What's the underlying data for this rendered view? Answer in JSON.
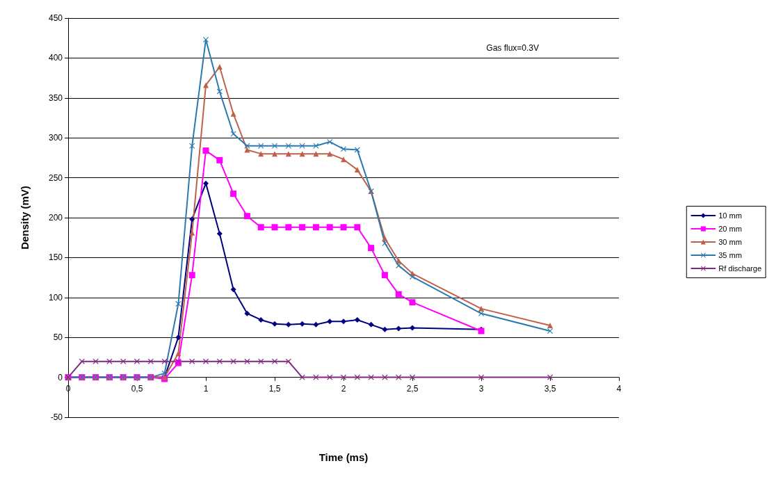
{
  "chart_data": {
    "type": "line",
    "xlabel": "Time (ms)",
    "ylabel": "Density (mV)",
    "annotations": [
      "Gas flux=0.3V"
    ],
    "xlim": [
      0,
      4
    ],
    "xticks": [
      0,
      {
        "value": 0.5,
        "label": "0,5"
      },
      1,
      {
        "value": 1.5,
        "label": "1,5"
      },
      2,
      {
        "value": 2.5,
        "label": "2,5"
      },
      3,
      {
        "value": 3.5,
        "label": "3,5"
      },
      4
    ],
    "ylim": [
      -50,
      450
    ],
    "yticks": [
      -50,
      0,
      50,
      100,
      150,
      200,
      250,
      300,
      350,
      400,
      450
    ],
    "grid": "y",
    "legend": "right",
    "series": [
      {
        "name": "10 mm",
        "color": "#000080",
        "marker": "diamond",
        "x": [
          0,
          0.1,
          0.2,
          0.3,
          0.4,
          0.5,
          0.6,
          0.7,
          0.8,
          0.9,
          1.0,
          1.1,
          1.2,
          1.3,
          1.4,
          1.5,
          1.6,
          1.7,
          1.8,
          1.9,
          2.0,
          2.1,
          2.2,
          2.3,
          2.4,
          2.5,
          3.0
        ],
        "values": [
          0,
          0,
          0,
          0,
          0,
          0,
          0,
          0,
          50,
          198,
          243,
          180,
          110,
          80,
          72,
          67,
          66,
          67,
          66,
          70,
          70,
          72,
          66,
          60,
          61,
          62,
          60
        ]
      },
      {
        "name": "20 mm",
        "color": "#ff00ff",
        "marker": "square",
        "x": [
          0,
          0.1,
          0.2,
          0.3,
          0.4,
          0.5,
          0.6,
          0.7,
          0.8,
          0.9,
          1.0,
          1.1,
          1.2,
          1.3,
          1.4,
          1.5,
          1.6,
          1.7,
          1.8,
          1.9,
          2.0,
          2.1,
          2.2,
          2.3,
          2.4,
          2.5,
          3.0
        ],
        "values": [
          0,
          0,
          0,
          0,
          0,
          0,
          0,
          -2,
          18,
          128,
          284,
          272,
          230,
          202,
          188,
          188,
          188,
          188,
          188,
          188,
          188,
          188,
          162,
          128,
          104,
          94,
          58
        ]
      },
      {
        "name": "30 mm",
        "color": "#c0604a",
        "marker": "triangle",
        "x": [
          0,
          0.1,
          0.2,
          0.3,
          0.4,
          0.5,
          0.6,
          0.7,
          0.8,
          0.9,
          1.0,
          1.1,
          1.2,
          1.3,
          1.4,
          1.5,
          1.6,
          1.7,
          1.8,
          1.9,
          2.0,
          2.1,
          2.2,
          2.3,
          2.4,
          2.5,
          3.0,
          3.5
        ],
        "values": [
          0,
          0,
          0,
          0,
          0,
          0,
          0,
          0,
          30,
          181,
          366,
          389,
          330,
          285,
          280,
          280,
          280,
          280,
          280,
          280,
          273,
          260,
          233,
          174,
          146,
          130,
          86,
          65
        ]
      },
      {
        "name": "35 mm",
        "color": "#2a7ab0",
        "marker": "cross",
        "x": [
          0,
          0.1,
          0.2,
          0.3,
          0.4,
          0.5,
          0.6,
          0.7,
          0.8,
          0.9,
          1.0,
          1.1,
          1.2,
          1.3,
          1.4,
          1.5,
          1.6,
          1.7,
          1.8,
          1.9,
          2.0,
          2.1,
          2.2,
          2.3,
          2.4,
          2.5,
          3.0,
          3.5
        ],
        "values": [
          0,
          0,
          0,
          0,
          0,
          0,
          0,
          5,
          92,
          290,
          423,
          358,
          305,
          290,
          290,
          290,
          290,
          290,
          290,
          295,
          286,
          285,
          233,
          168,
          140,
          126,
          80,
          58
        ]
      },
      {
        "name": "Rf discharge",
        "color": "#7f2a7f",
        "marker": "cross",
        "x": [
          0,
          0.1,
          0.2,
          0.3,
          0.4,
          0.5,
          0.6,
          0.7,
          0.8,
          0.9,
          1.0,
          1.1,
          1.2,
          1.3,
          1.4,
          1.5,
          1.6,
          1.7,
          1.8,
          1.9,
          2.0,
          2.1,
          2.2,
          2.3,
          2.4,
          2.5,
          3.0,
          3.5
        ],
        "values": [
          0,
          20,
          20,
          20,
          20,
          20,
          20,
          20,
          20,
          20,
          20,
          20,
          20,
          20,
          20,
          20,
          20,
          0,
          0,
          0,
          0,
          0,
          0,
          0,
          0,
          0,
          0,
          0
        ]
      }
    ]
  }
}
